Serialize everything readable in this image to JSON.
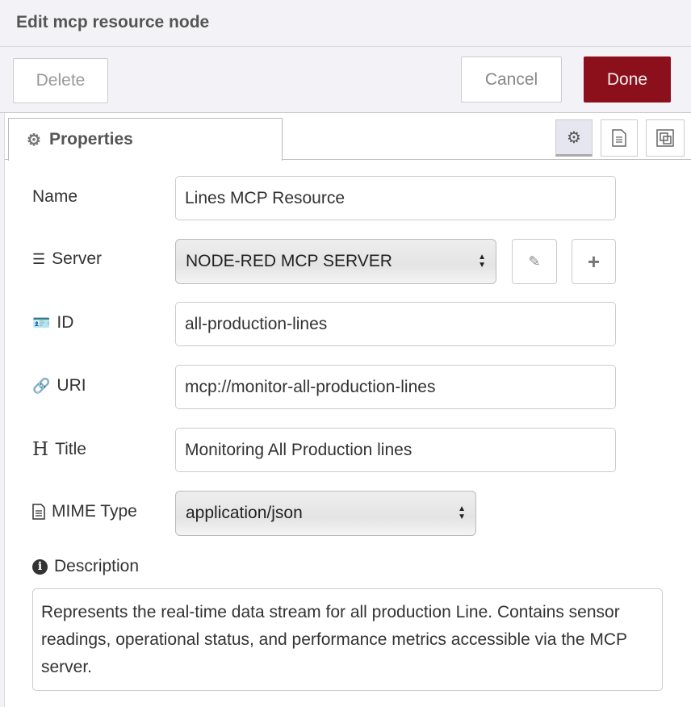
{
  "header": {
    "title": "Edit mcp resource node"
  },
  "toolbar": {
    "delete": "Delete",
    "cancel": "Cancel",
    "done": "Done"
  },
  "colors": {
    "done_bg": "#8c101c"
  },
  "tabs": {
    "properties": "Properties",
    "icons": [
      "gear-icon",
      "file-text-icon",
      "frame-icon"
    ]
  },
  "form": {
    "name": {
      "label": "Name",
      "value": "Lines MCP Resource"
    },
    "server": {
      "label": "Server",
      "value": "NODE-RED MCP SERVER"
    },
    "id": {
      "label": "ID",
      "value": "all-production-lines"
    },
    "uri": {
      "label": "URI",
      "value": "mcp://monitor-all-production-lines"
    },
    "title": {
      "label": "Title",
      "value": "Monitoring All Production lines"
    },
    "mime": {
      "label": "MIME Type",
      "value": "application/json"
    },
    "description": {
      "label": "Description",
      "value": "Represents the real-time data stream for all production Line. Contains sensor readings, operational status, and performance metrics accessible via the MCP server."
    }
  }
}
